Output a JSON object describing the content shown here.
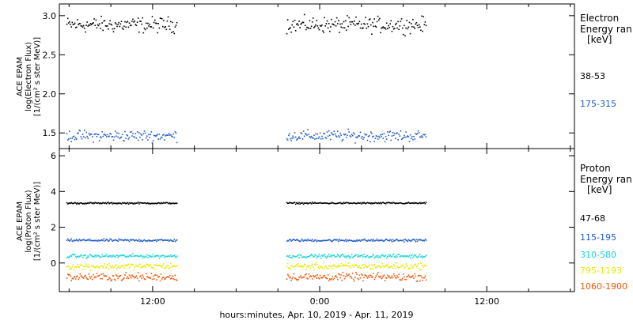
{
  "chart_data": [
    {
      "type": "scatter",
      "panel": "electron",
      "ylabel_lines": [
        "ACE EPAM",
        "log(Electron Flux)",
        "[1/(cm² s ster MeV)]"
      ],
      "ylim": [
        1.3,
        3.15
      ],
      "yticks": [
        1.5,
        2.0,
        2.5,
        3.0
      ],
      "ytick_labels": [
        "1.5",
        "2.0",
        "2.5",
        "3.0"
      ],
      "legend": {
        "title_lines": [
          "Electron",
          "Energy ran",
          "[keV]"
        ],
        "entries": [
          {
            "label": "38-53",
            "color": "#000000"
          },
          {
            "label": "175-315",
            "color": "#1f5bc6"
          }
        ]
      },
      "series": [
        {
          "name": "38-53",
          "color": "#000000",
          "level": 2.89,
          "spread": 0.07
        },
        {
          "name": "175-315",
          "color": "#1f5bc6",
          "level": 1.47,
          "spread": 0.05
        }
      ]
    },
    {
      "type": "scatter",
      "panel": "proton",
      "ylabel_lines": [
        "ACE EPAM",
        "log(Proton Flux)",
        "[1/(cm² s ster MeV)]"
      ],
      "ylim": [
        -1.6,
        6.4
      ],
      "yticks": [
        0,
        2,
        4,
        6
      ],
      "ytick_labels": [
        "0",
        "2",
        "4",
        "6"
      ],
      "legend": {
        "title_lines": [
          "Proton",
          "Energy ran",
          "[keV]"
        ],
        "entries": [
          {
            "label": "47-68",
            "color": "#000000"
          },
          {
            "label": "115-195",
            "color": "#1f5bc6"
          },
          {
            "label": "310-580",
            "color": "#16d6d6"
          },
          {
            "label": "795-1193",
            "color": "#e8e800"
          },
          {
            "label": "1060-1900",
            "color": "#e65a0a"
          }
        ]
      },
      "series": [
        {
          "name": "47-68",
          "color": "#000000",
          "level": 3.38,
          "spread": 0.03
        },
        {
          "name": "115-195",
          "color": "#1f5bc6",
          "level": 1.3,
          "spread": 0.05
        },
        {
          "name": "310-580",
          "color": "#16d6d6",
          "level": 0.42,
          "spread": 0.07
        },
        {
          "name": "795-1193",
          "color": "#e8e800",
          "level": -0.15,
          "spread": 0.12
        },
        {
          "name": "1060-1900",
          "color": "#e65a0a",
          "level": -0.75,
          "spread": 0.15
        }
      ]
    }
  ],
  "x_axis": {
    "label": "hours:minutes, Apr. 10, 2019 - Apr. 11, 2019",
    "range_hours": [
      5.3,
      42.3
    ],
    "major_ticks": [
      12,
      24,
      36
    ],
    "major_labels": [
      "12:00",
      "0:00",
      "12:00"
    ],
    "minor_step": 3,
    "data_segments": [
      [
        5.8,
        13.7
      ],
      [
        21.6,
        31.6
      ]
    ]
  }
}
